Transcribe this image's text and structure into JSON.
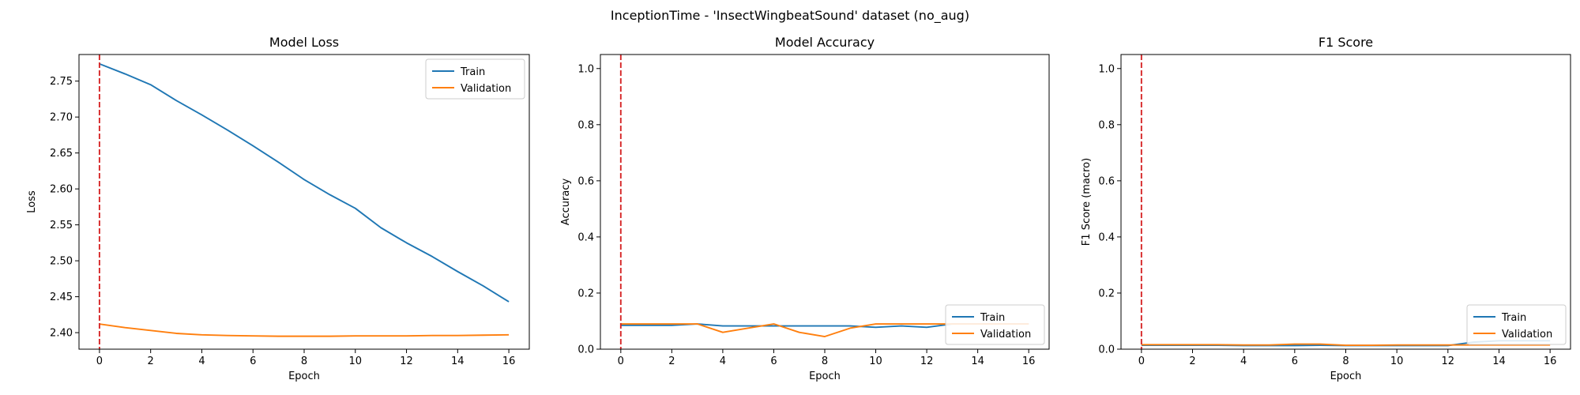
{
  "suptitle": "InceptionTime - 'InsectWingbeatSound' dataset (no_aug)",
  "colors": {
    "train": "#1f77b4",
    "validation": "#ff7f0e",
    "marker": "#d62728"
  },
  "chart_data": [
    {
      "type": "line",
      "title": "Model Loss",
      "xlabel": "Epoch",
      "ylabel": "Loss",
      "xlim": [
        -0.8,
        16.8
      ],
      "ylim": [
        2.377,
        2.787
      ],
      "xticks": [
        0,
        2,
        4,
        6,
        8,
        10,
        12,
        14,
        16
      ],
      "yticks": [
        2.4,
        2.45,
        2.5,
        2.55,
        2.6,
        2.65,
        2.7,
        2.75
      ],
      "tick_decimals": 2,
      "vline_x": 0,
      "legend": "upper right",
      "x": [
        0,
        1,
        2,
        3,
        4,
        5,
        6,
        7,
        8,
        9,
        10,
        11,
        12,
        13,
        14,
        15,
        16
      ],
      "series": [
        {
          "name": "Train",
          "values": [
            2.774,
            2.76,
            2.745,
            2.723,
            2.703,
            2.682,
            2.66,
            2.637,
            2.613,
            2.592,
            2.573,
            2.546,
            2.525,
            2.506,
            2.485,
            2.465,
            2.443
          ]
        },
        {
          "name": "Validation",
          "values": [
            2.412,
            2.407,
            2.403,
            2.399,
            2.397,
            2.396,
            2.3955,
            2.395,
            2.395,
            2.395,
            2.3955,
            2.3955,
            2.3955,
            2.396,
            2.396,
            2.3965,
            2.397
          ]
        }
      ]
    },
    {
      "type": "line",
      "title": "Model Accuracy",
      "xlabel": "Epoch",
      "ylabel": "Accuracy",
      "xlim": [
        -0.8,
        16.8
      ],
      "ylim": [
        0,
        1.05
      ],
      "xticks": [
        0,
        2,
        4,
        6,
        8,
        10,
        12,
        14,
        16
      ],
      "yticks": [
        0.0,
        0.2,
        0.4,
        0.6,
        0.8,
        1.0
      ],
      "tick_decimals": 1,
      "vline_x": 0,
      "legend": "lower right",
      "x": [
        0,
        1,
        2,
        3,
        4,
        5,
        6,
        7,
        8,
        9,
        10,
        11,
        12,
        13,
        14,
        15,
        16
      ],
      "series": [
        {
          "name": "Train",
          "values": [
            0.085,
            0.085,
            0.085,
            0.09,
            0.083,
            0.083,
            0.083,
            0.083,
            0.083,
            0.083,
            0.078,
            0.083,
            0.078,
            0.09,
            0.09,
            0.09,
            0.09
          ]
        },
        {
          "name": "Validation",
          "values": [
            0.09,
            0.09,
            0.09,
            0.09,
            0.06,
            0.075,
            0.09,
            0.06,
            0.045,
            0.075,
            0.09,
            0.09,
            0.09,
            0.09,
            0.09,
            0.09,
            0.09
          ]
        }
      ]
    },
    {
      "type": "line",
      "title": "F1 Score",
      "xlabel": "Epoch",
      "ylabel": "F1 Score (macro)",
      "xlim": [
        -0.8,
        16.8
      ],
      "ylim": [
        0,
        1.05
      ],
      "xticks": [
        0,
        2,
        4,
        6,
        8,
        10,
        12,
        14,
        16
      ],
      "yticks": [
        0.0,
        0.2,
        0.4,
        0.6,
        0.8,
        1.0
      ],
      "tick_decimals": 1,
      "vline_x": 0,
      "legend": "lower right",
      "x": [
        0,
        1,
        2,
        3,
        4,
        5,
        6,
        7,
        8,
        9,
        10,
        11,
        12,
        13,
        14,
        15,
        16
      ],
      "series": [
        {
          "name": "Train",
          "values": [
            0.014,
            0.014,
            0.014,
            0.014,
            0.013,
            0.013,
            0.013,
            0.014,
            0.013,
            0.013,
            0.013,
            0.013,
            0.013,
            0.025,
            0.03,
            0.03,
            0.03
          ]
        },
        {
          "name": "Validation",
          "values": [
            0.016,
            0.016,
            0.016,
            0.016,
            0.015,
            0.015,
            0.018,
            0.018,
            0.014,
            0.014,
            0.015,
            0.015,
            0.015,
            0.015,
            0.015,
            0.015,
            0.015
          ]
        }
      ]
    }
  ]
}
